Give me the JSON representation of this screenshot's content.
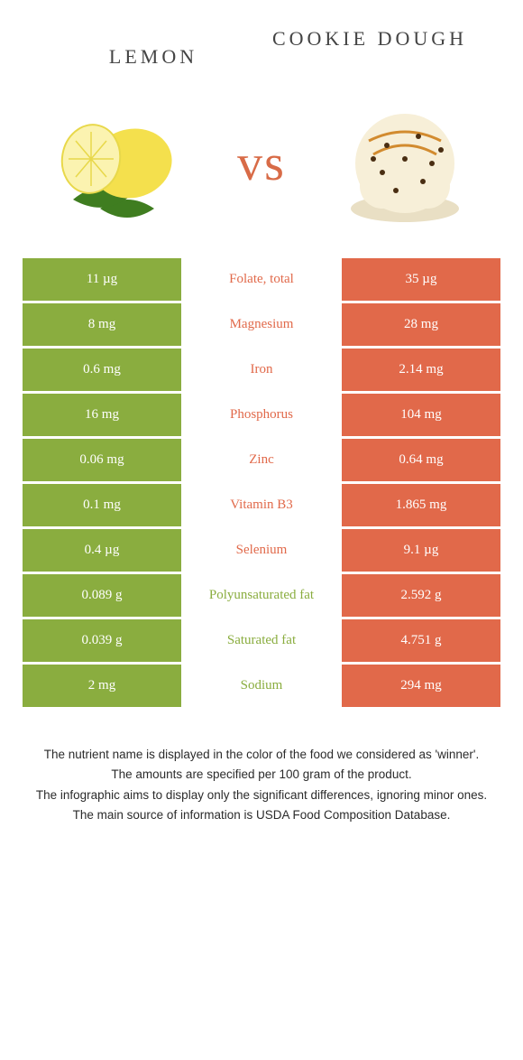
{
  "header": {
    "left": "Lemon",
    "right": "Cookie dough"
  },
  "vs": "vs",
  "colors": {
    "left_bg": "#8aad3f",
    "right_bg": "#e1694a",
    "mid_left_text": "#8aad3f",
    "mid_right_text": "#e1694a"
  },
  "rows": [
    {
      "left": "11 µg",
      "label": "Folate, total",
      "right": "35 µg",
      "winner": "right"
    },
    {
      "left": "8 mg",
      "label": "Magnesium",
      "right": "28 mg",
      "winner": "right"
    },
    {
      "left": "0.6 mg",
      "label": "Iron",
      "right": "2.14 mg",
      "winner": "right"
    },
    {
      "left": "16 mg",
      "label": "Phosphorus",
      "right": "104 mg",
      "winner": "right"
    },
    {
      "left": "0.06 mg",
      "label": "Zinc",
      "right": "0.64 mg",
      "winner": "right"
    },
    {
      "left": "0.1 mg",
      "label": "Vitamin B3",
      "right": "1.865 mg",
      "winner": "right"
    },
    {
      "left": "0.4 µg",
      "label": "Selenium",
      "right": "9.1 µg",
      "winner": "right"
    },
    {
      "left": "0.089 g",
      "label": "Polyunsaturated fat",
      "right": "2.592 g",
      "winner": "left"
    },
    {
      "left": "0.039 g",
      "label": "Saturated fat",
      "right": "4.751 g",
      "winner": "left"
    },
    {
      "left": "2 mg",
      "label": "Sodium",
      "right": "294 mg",
      "winner": "left"
    }
  ],
  "footer": [
    "The nutrient name is displayed in the color of the food we considered as 'winner'.",
    "The amounts are specified per 100 gram of the product.",
    "The infographic aims to display only the significant differences, ignoring minor ones.",
    "The main source of information is USDA Food Composition Database."
  ]
}
